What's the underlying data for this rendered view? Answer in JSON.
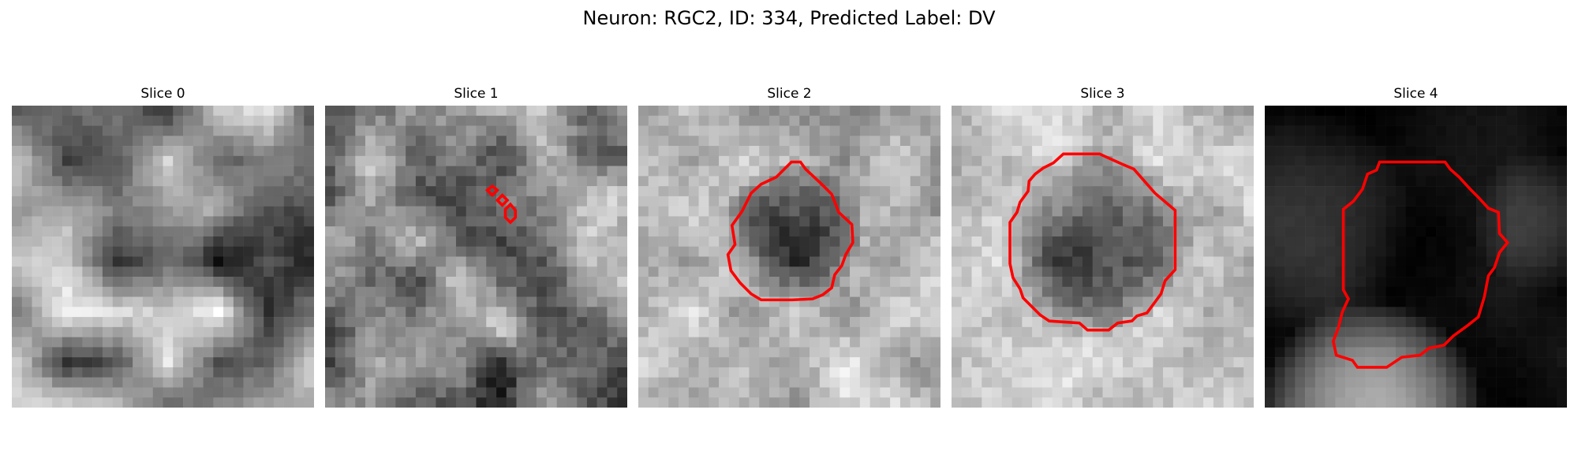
{
  "figure": {
    "title": "Neuron: RGC2, ID: 334, Predicted Label: DV"
  },
  "panels": [
    {
      "title": "Slice 0",
      "contour_color": "#ff0000"
    },
    {
      "title": "Slice 1",
      "contour_color": "#ff0000"
    },
    {
      "title": "Slice 2",
      "contour_color": "#ff0000"
    },
    {
      "title": "Slice 3",
      "contour_color": "#ff0000"
    },
    {
      "title": "Slice 4",
      "contour_color": "#ff0000"
    }
  ]
}
